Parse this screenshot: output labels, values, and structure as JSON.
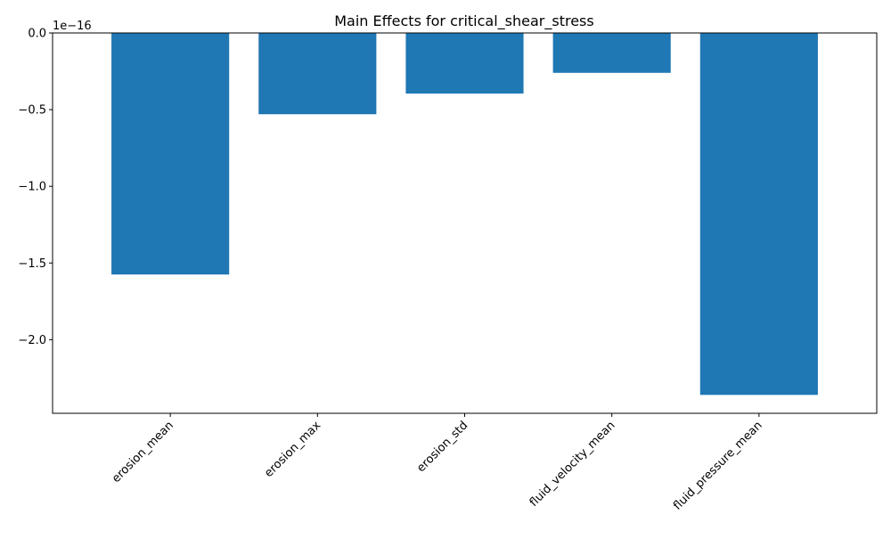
{
  "chart_data": {
    "type": "bar",
    "title": "Main Effects for critical_shear_stress",
    "xlabel": "",
    "ylabel": "",
    "offset_label": "1e−16",
    "scale_exponent": -16,
    "categories": [
      "erosion_mean",
      "erosion_max",
      "erosion_std",
      "fluid_velocity_mean",
      "fluid_pressure_mean"
    ],
    "values": [
      -1.575e-16,
      -5.3e-17,
      -3.95e-17,
      -2.6e-17,
      -2.36e-16
    ],
    "ylim": [
      -2.48e-16,
      0.0
    ],
    "yticks": [
      0.0,
      -5e-17,
      -1e-16,
      -1.5e-16,
      -2e-16
    ],
    "ytick_labels": [
      "0.0",
      "−0.5",
      "−1.0",
      "−1.5",
      "−2.0"
    ],
    "bar_color": "#1f77b4",
    "grid": false,
    "legend": "none"
  }
}
